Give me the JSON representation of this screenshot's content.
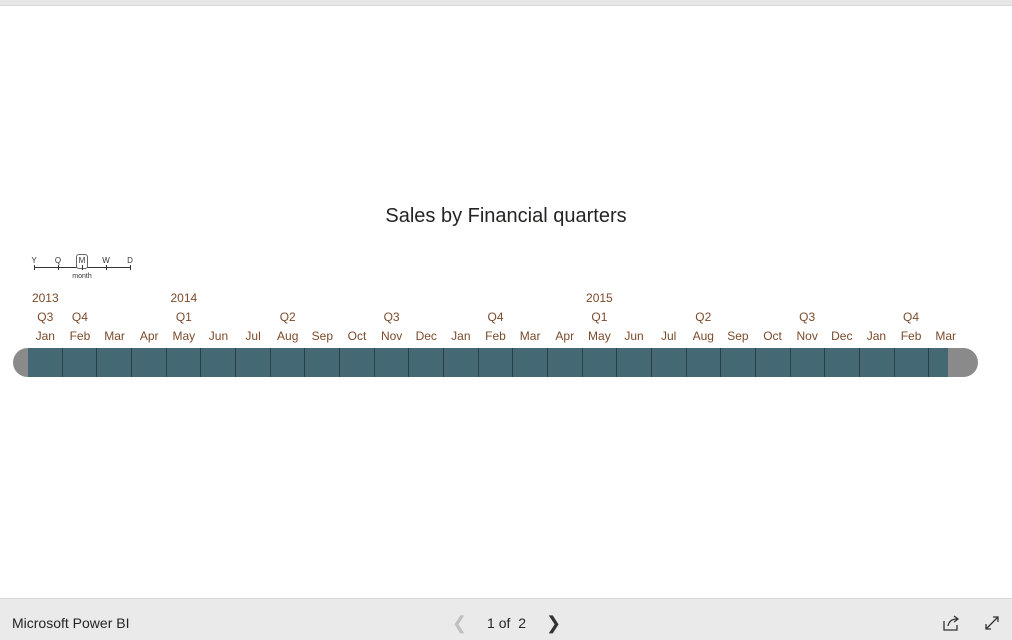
{
  "report": {
    "title": "Sales by Financial quarters"
  },
  "granularity": {
    "levels": [
      "Y",
      "Q",
      "M",
      "W",
      "D"
    ],
    "selected_index": 2,
    "selected_label": "month"
  },
  "timeline": {
    "years": [
      {
        "label": "2013",
        "index": 0
      },
      {
        "label": "2014",
        "index": 4
      },
      {
        "label": "2015",
        "index": 16
      }
    ],
    "quarters": [
      {
        "label": "Q3",
        "index": 0
      },
      {
        "label": "Q4",
        "index": 1
      },
      {
        "label": "Q1",
        "index": 4
      },
      {
        "label": "Q2",
        "index": 7
      },
      {
        "label": "Q3",
        "index": 10
      },
      {
        "label": "Q4",
        "index": 13
      },
      {
        "label": "Q1",
        "index": 16
      },
      {
        "label": "Q2",
        "index": 19
      },
      {
        "label": "Q3",
        "index": 22
      },
      {
        "label": "Q4",
        "index": 25
      }
    ],
    "months": [
      "Jan",
      "Feb",
      "Mar",
      "Apr",
      "May",
      "Jun",
      "Jul",
      "Aug",
      "Sep",
      "Oct",
      "Nov",
      "Dec",
      "Jan",
      "Feb",
      "Mar",
      "Apr",
      "May",
      "Jun",
      "Jul",
      "Aug",
      "Sep",
      "Oct",
      "Nov",
      "Dec",
      "Jan",
      "Feb",
      "Mar"
    ],
    "cell_color": "#456974",
    "cap_color": "#8a8a8a",
    "label_color": "#7b4a2a"
  },
  "footer": {
    "brand": "Microsoft Power BI",
    "page_current": "1",
    "page_of": "of",
    "page_total": "2",
    "prev_icon": "chevron-left-icon",
    "next_icon": "chevron-right-icon",
    "share_icon": "share-icon",
    "expand_icon": "expand-icon"
  }
}
